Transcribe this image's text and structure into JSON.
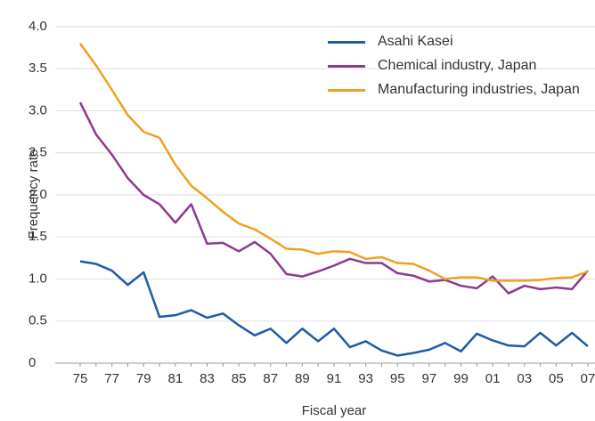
{
  "chart_data": {
    "type": "line",
    "x_label": "Fiscal year",
    "y_label": "Frequency rate",
    "categories": [
      "75",
      null,
      "77",
      null,
      "79",
      null,
      "81",
      null,
      "83",
      null,
      "85",
      null,
      "87",
      null,
      "89",
      null,
      "91",
      null,
      "93",
      null,
      "95",
      null,
      "97",
      null,
      "99",
      null,
      "01",
      null,
      "03",
      null,
      "05",
      null,
      "07"
    ],
    "series": [
      {
        "name": "Asahi Kasei",
        "color": "#1e5aa8",
        "values": [
          1.21,
          1.18,
          1.1,
          0.93,
          1.08,
          0.55,
          0.57,
          0.63,
          0.54,
          0.59,
          0.45,
          0.33,
          0.41,
          0.24,
          0.41,
          0.26,
          0.41,
          0.19,
          0.26,
          0.15,
          0.09,
          0.12,
          0.16,
          0.24,
          0.14,
          0.35,
          0.27,
          0.21,
          0.2,
          0.36,
          0.21,
          0.36,
          0.2
        ]
      },
      {
        "name": "Chemical industry, Japan",
        "color": "#8b3a8f",
        "values": [
          3.1,
          2.72,
          2.48,
          2.2,
          2.0,
          1.89,
          1.67,
          1.89,
          1.42,
          1.43,
          1.33,
          1.44,
          1.3,
          1.06,
          1.03,
          1.09,
          1.16,
          1.24,
          1.19,
          1.19,
          1.07,
          1.04,
          0.97,
          0.99,
          0.92,
          0.89,
          1.03,
          0.83,
          0.92,
          0.88,
          0.9,
          0.88,
          1.1
        ]
      },
      {
        "name": "Manufacturing industries, Japan",
        "color": "#f0a020",
        "values": [
          3.8,
          3.54,
          3.25,
          2.95,
          2.75,
          2.68,
          2.36,
          2.11,
          1.96,
          1.8,
          1.66,
          1.59,
          1.48,
          1.36,
          1.35,
          1.3,
          1.33,
          1.32,
          1.24,
          1.26,
          1.19,
          1.18,
          1.1,
          1.0,
          1.02,
          1.02,
          0.98,
          0.98,
          0.98,
          0.99,
          1.01,
          1.02,
          1.09
        ]
      }
    ],
    "ylim": [
      0,
      4
    ],
    "yticks": [
      0,
      0.5,
      {
        "value": 1,
        "label": "1.0"
      },
      1.5,
      {
        "value": 2,
        "label": "2.0"
      },
      2.5,
      {
        "value": 3,
        "label": "3.0"
      },
      3.5,
      {
        "value": 4,
        "label": "4.0"
      }
    ],
    "grid": true,
    "legend": "top-right"
  }
}
